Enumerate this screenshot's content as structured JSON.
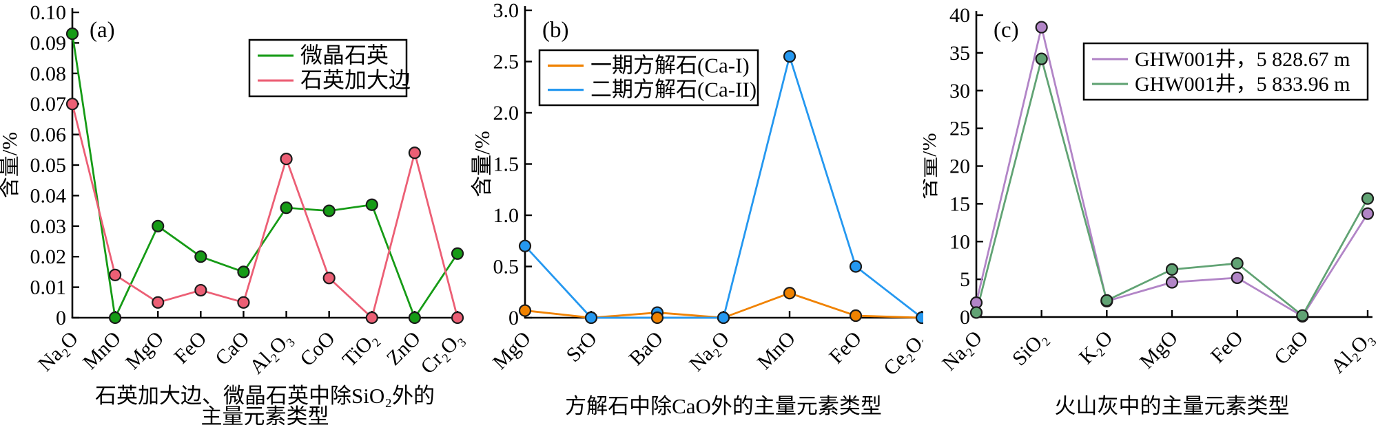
{
  "figure": {
    "marker_outline": "#1b1b1b",
    "axis_color": "#000000",
    "background": "#ffffff"
  },
  "chart_data": [
    {
      "type": "line",
      "panel_tag": "(a)",
      "ylabel": "含量/%",
      "xlabel_lines": [
        "石英加大边、微晶石英中除SiO₂外的",
        "主量元素类型"
      ],
      "ylim": [
        0,
        0.1
      ],
      "ytick_labels": [
        "0",
        "0.01",
        "0.02",
        "0.03",
        "0.04",
        "0.05",
        "0.06",
        "0.07",
        "0.08",
        "0.09",
        "0.10"
      ],
      "categories": [
        "Na₂O",
        "MnO",
        "MgO",
        "FeO",
        "CaO",
        "Al₂O₃",
        "CoO",
        "TiO₂",
        "ZnO",
        "Cr₂O₃"
      ],
      "grid": "off",
      "legend_position": "top-right-inside",
      "series": [
        {
          "name": "微晶石英",
          "color": "#169b16",
          "values": [
            0.093,
            0,
            0.03,
            0.02,
            0.015,
            0.036,
            0.035,
            0.037,
            0,
            0.021
          ]
        },
        {
          "name": "石英加大边",
          "color": "#ec5f75",
          "values": [
            0.07,
            0.014,
            0.005,
            0.009,
            0.005,
            0.052,
            0.013,
            0,
            0.054,
            0
          ]
        }
      ]
    },
    {
      "type": "line",
      "panel_tag": "(b)",
      "ylabel": "含量/%",
      "xlabel_lines": [
        "方解石中除CaO外的主量元素类型"
      ],
      "ylim": [
        0,
        3.0
      ],
      "ytick_labels": [
        "0",
        "0.5",
        "1.0",
        "1.5",
        "2.0",
        "2.5",
        "3.0"
      ],
      "categories": [
        "MgO",
        "SrO",
        "BaO",
        "Na₂O",
        "MnO",
        "FeO",
        "Ce₂O₃"
      ],
      "grid": "off",
      "legend_position": "top-left-inside",
      "series": [
        {
          "name": "一期方解石(Ca-I)",
          "color": "#f08200",
          "values": [
            0.07,
            0,
            0.05,
            0,
            0.24,
            0.02,
            0
          ],
          "marker_colors": [
            null,
            null,
            "#2598f0",
            null,
            null,
            null,
            null
          ]
        },
        {
          "name": "二期方解石(Ca-II)",
          "color": "#2598f0",
          "values": [
            0.7,
            0,
            0,
            0,
            2.55,
            0.5,
            0
          ],
          "marker_colors": [
            null,
            null,
            "#f08200",
            null,
            null,
            null,
            null
          ]
        }
      ]
    },
    {
      "type": "line",
      "panel_tag": "(c)",
      "ylabel": "含量/%",
      "xlabel_lines": [
        "火山灰中的主量元素类型"
      ],
      "ylim": [
        0,
        40
      ],
      "ytick_labels": [
        "0",
        "5",
        "10",
        "15",
        "20",
        "25",
        "30",
        "35",
        "40"
      ],
      "categories": [
        "Na₂O",
        "SiO₂",
        "K₂O",
        "MgO",
        "FeO",
        "CaO",
        "Al₂O₃"
      ],
      "grid": "off",
      "legend_position": "top-right-inside",
      "series": [
        {
          "name": "GHW001井，5 828.67 m",
          "color": "#b285c7",
          "values": [
            1.9,
            38.4,
            2.1,
            4.6,
            5.2,
            0.1,
            13.7
          ]
        },
        {
          "name": "GHW001井，5 833.96 m",
          "color": "#61a374",
          "values": [
            0.6,
            34.2,
            2.2,
            6.3,
            7.1,
            0.2,
            15.7
          ]
        }
      ]
    }
  ]
}
